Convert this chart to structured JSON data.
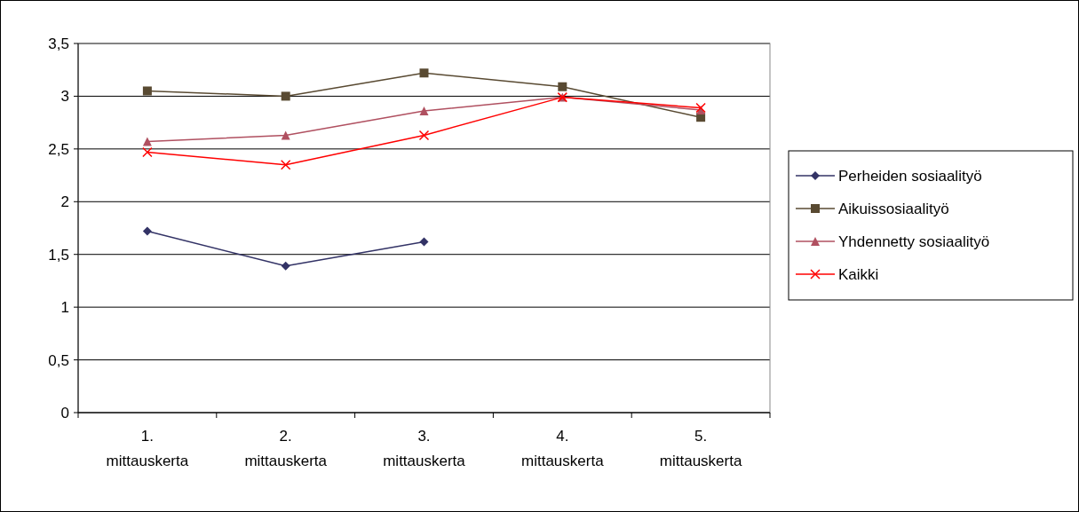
{
  "chart_data": {
    "type": "line",
    "categories": [
      "1. mittauskerta",
      "2. mittauskerta",
      "3. mittauskerta",
      "4. mittauskerta",
      "5. mittauskerta"
    ],
    "ylim": [
      0,
      3.5
    ],
    "yticks": [
      0,
      {
        "value": 0.5,
        "label": "0,5"
      },
      1,
      {
        "value": 1.5,
        "label": "1,5"
      },
      2,
      {
        "value": 2.5,
        "label": "2,5"
      },
      3,
      {
        "value": 3.5,
        "label": "3,5"
      }
    ],
    "grid": "y",
    "legend": "right",
    "series": [
      {
        "name": "Perheiden sosiaalityö",
        "color": "#333366",
        "marker": "diamond",
        "values": [
          1.72,
          1.39,
          1.62,
          null,
          null
        ]
      },
      {
        "name": "Aikuissosiaalityö",
        "color": "#594a32",
        "marker": "square",
        "values": [
          3.05,
          3.0,
          3.22,
          3.09,
          2.8
        ]
      },
      {
        "name": "Yhdennetty sosiaalityö",
        "color": "#b05060",
        "marker": "triangle",
        "values": [
          2.57,
          2.63,
          2.86,
          2.99,
          2.87
        ]
      },
      {
        "name": "Kaikki",
        "color": "#ff0000",
        "marker": "cross",
        "values": [
          2.47,
          2.35,
          2.63,
          2.99,
          2.89
        ]
      }
    ]
  }
}
